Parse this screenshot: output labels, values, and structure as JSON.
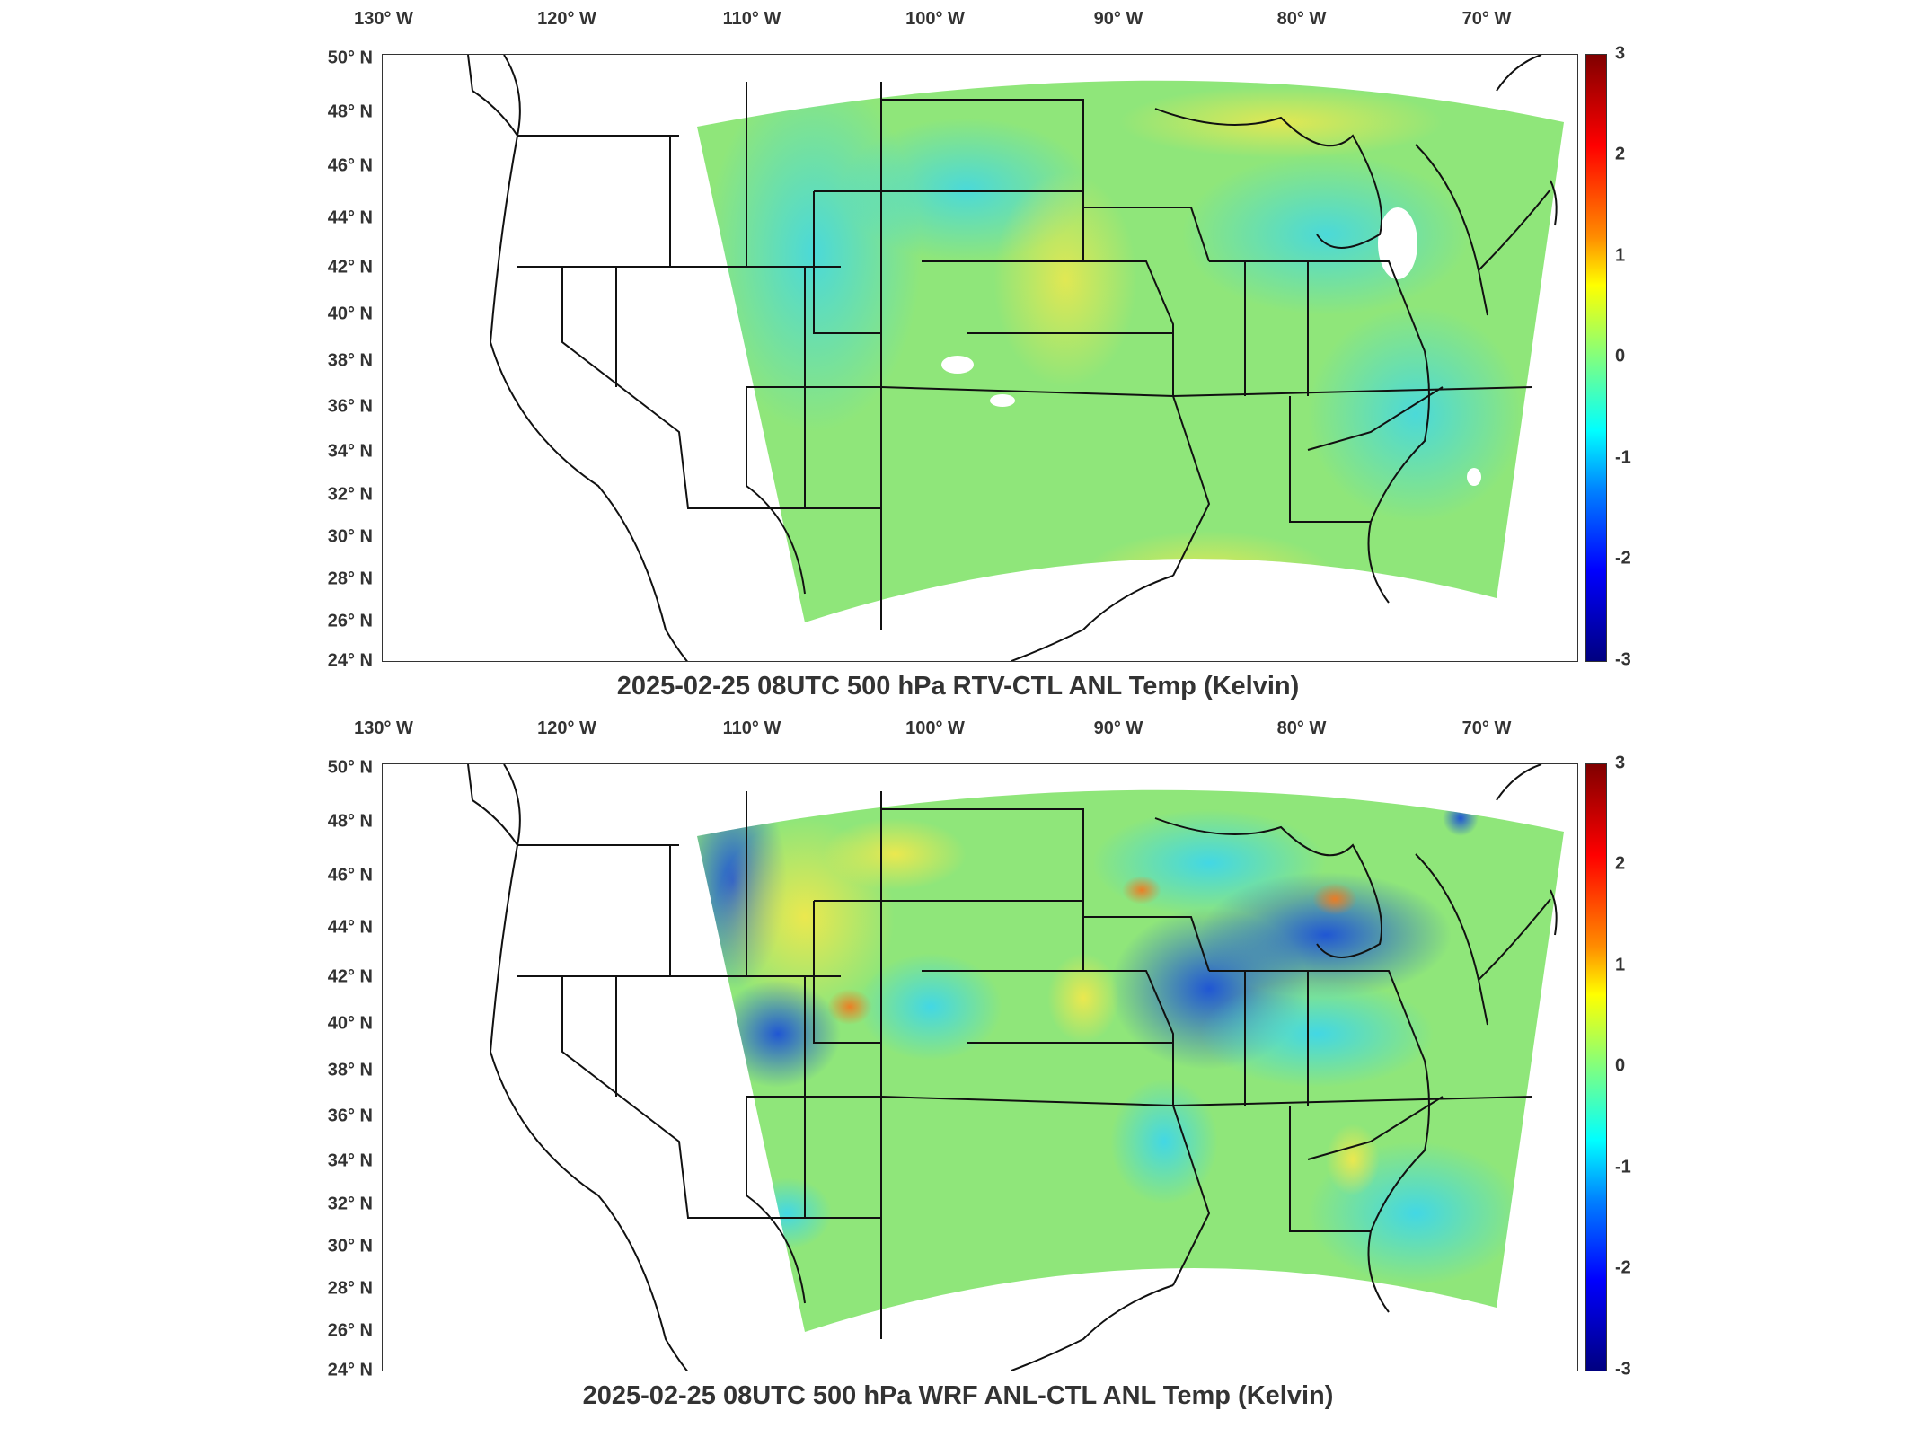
{
  "panels": [
    {
      "title": "2025-02-25 08UTC 500 hPa RTV-CTL ANL Temp (Kelvin)",
      "pattern": "smooth"
    },
    {
      "title": "2025-02-25 08UTC 500 hPa WRF ANL-CTL ANL Temp (Kelvin)",
      "pattern": "blobs"
    }
  ],
  "lon_labels": [
    "130° W",
    "120° W",
    "110° W",
    "100° W",
    "90° W",
    "80° W",
    "70° W"
  ],
  "lat_labels": [
    "50° N",
    "48° N",
    "46° N",
    "44° N",
    "42° N",
    "40° N",
    "38° N",
    "36° N",
    "34° N",
    "32° N",
    "30° N",
    "28° N",
    "26° N",
    "24° N"
  ],
  "colorbar": {
    "ticks": [
      "3",
      "2",
      "1",
      "0",
      "-1",
      "-2",
      "-3"
    ],
    "min": -3,
    "max": 3
  },
  "colors": {
    "field_base": "#8fe67a",
    "warm": "#f5e84a",
    "hot": "#f07a20",
    "cool": "#3ad6f0",
    "cold": "#1a4fd8",
    "border": "#111111"
  }
}
